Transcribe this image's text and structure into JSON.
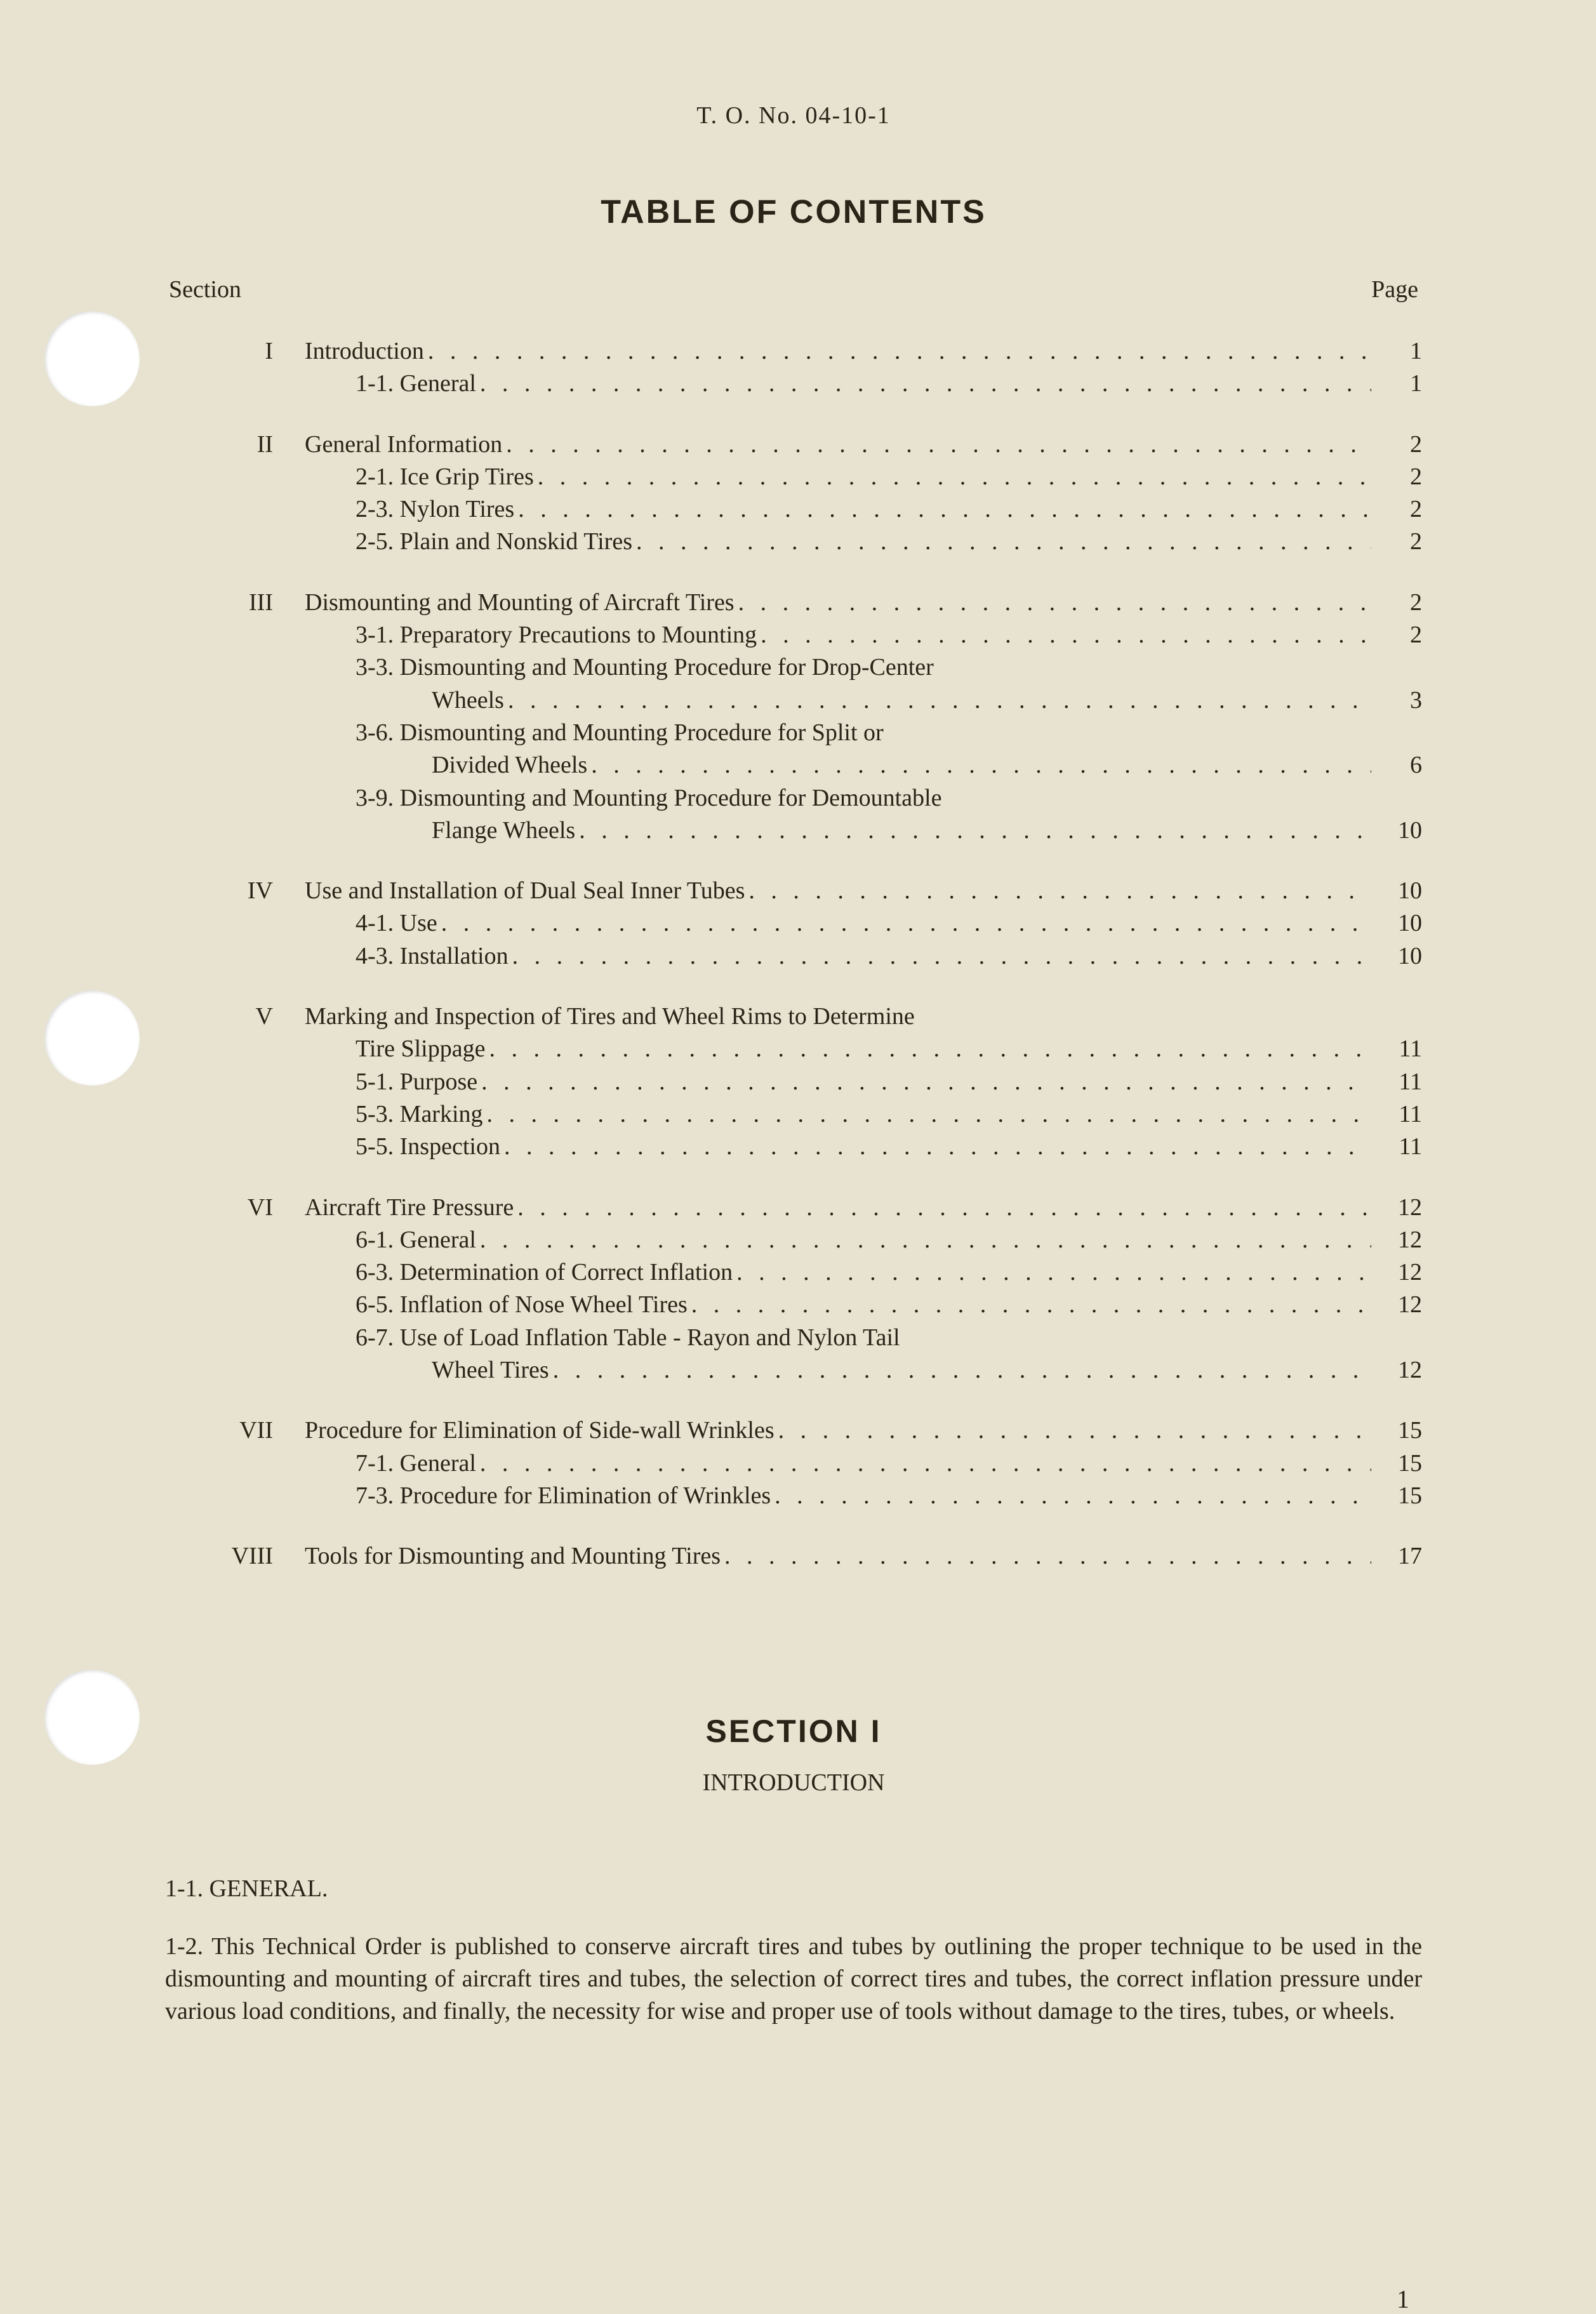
{
  "page_background": "#e8e3d0",
  "text_color": "#2a2418",
  "doc_number": "T. O. No. 04-10-1",
  "title": "TABLE OF CONTENTS",
  "header_left": "Section",
  "header_right": "Page",
  "toc": [
    {
      "roman": "I",
      "title": "Introduction",
      "page": "1",
      "subs": [
        {
          "num": "1-1.",
          "text": "General",
          "page": "1"
        }
      ]
    },
    {
      "roman": "II",
      "title": "General Information",
      "page": "2",
      "subs": [
        {
          "num": "2-1.",
          "text": "Ice Grip Tires",
          "page": "2"
        },
        {
          "num": "2-3.",
          "text": "Nylon Tires",
          "page": "2"
        },
        {
          "num": "2-5.",
          "text": "Plain and Nonskid Tires",
          "page": "2"
        }
      ]
    },
    {
      "roman": "III",
      "title": "Dismounting and Mounting of Aircraft Tires",
      "page": "2",
      "subs": [
        {
          "num": "3-1.",
          "text": "Preparatory Precautions to Mounting",
          "page": "2"
        },
        {
          "num": "3-3.",
          "text": "Dismounting and Mounting Procedure for Drop-Center",
          "cont": "Wheels",
          "page": "3"
        },
        {
          "num": "3-6.",
          "text": "Dismounting and Mounting Procedure for Split or",
          "cont": "Divided Wheels",
          "page": "6"
        },
        {
          "num": "3-9.",
          "text": "Dismounting and Mounting Procedure for Demountable",
          "cont": "Flange Wheels",
          "page": "10"
        }
      ]
    },
    {
      "roman": "IV",
      "title": "Use and Installation of Dual Seal Inner Tubes",
      "page": "10",
      "subs": [
        {
          "num": "4-1.",
          "text": "Use",
          "page": "10"
        },
        {
          "num": "4-3.",
          "text": "Installation",
          "page": "10"
        }
      ]
    },
    {
      "roman": "V",
      "title": "Marking and Inspection of Tires and Wheel Rims to Determine",
      "title_cont": "Tire Slippage",
      "page": "11",
      "subs": [
        {
          "num": "5-1.",
          "text": "Purpose",
          "page": "11"
        },
        {
          "num": "5-3.",
          "text": "Marking",
          "page": "11"
        },
        {
          "num": "5-5.",
          "text": "Inspection",
          "page": "11"
        }
      ]
    },
    {
      "roman": "VI",
      "title": "Aircraft Tire Pressure",
      "page": "12",
      "subs": [
        {
          "num": "6-1.",
          "text": "General",
          "page": "12"
        },
        {
          "num": "6-3.",
          "text": "Determination of Correct Inflation",
          "page": "12"
        },
        {
          "num": "6-5.",
          "text": "Inflation of Nose Wheel Tires",
          "page": "12"
        },
        {
          "num": "6-7.",
          "text": "Use of Load Inflation Table - Rayon and Nylon Tail",
          "cont": "Wheel Tires",
          "page": "12"
        }
      ]
    },
    {
      "roman": "VII",
      "title": "Procedure for Elimination of Side-wall Wrinkles",
      "page": "15",
      "subs": [
        {
          "num": "7-1.",
          "text": "General",
          "page": "15"
        },
        {
          "num": "7-3.",
          "text": "Procedure for Elimination of Wrinkles",
          "page": "15"
        }
      ]
    },
    {
      "roman": "VIII",
      "title": "Tools for Dismounting and Mounting Tires",
      "page": "17",
      "subs": []
    }
  ],
  "section1_title": "SECTION I",
  "section1_subtitle": "INTRODUCTION",
  "para_1_1": "1-1. GENERAL.",
  "para_1_2": "1-2. This Technical Order is published to conserve aircraft tires and tubes by outlining the proper technique to be used in the dismounting and mounting of aircraft tires and tubes, the selection of correct tires and tubes, the correct inflation pressure under various load conditions, and finally, the necessity for wise and proper use of tools without damage to the tires, tubes, or wheels.",
  "page_number": "1",
  "typography": {
    "body_fontsize_pt": 28,
    "title_fontsize_pt": 38,
    "font_family_body": "Times New Roman",
    "font_family_heading": "Arial Black / Helvetica Bold"
  }
}
